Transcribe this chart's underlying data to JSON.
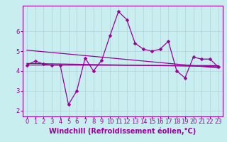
{
  "x": [
    0,
    1,
    2,
    3,
    4,
    5,
    6,
    7,
    8,
    9,
    10,
    11,
    12,
    13,
    14,
    15,
    16,
    17,
    18,
    19,
    20,
    21,
    22,
    23
  ],
  "line1": [
    4.3,
    4.5,
    4.35,
    4.3,
    4.3,
    2.3,
    3.0,
    4.65,
    4.0,
    4.55,
    5.8,
    7.0,
    6.6,
    5.4,
    5.1,
    5.0,
    5.1,
    5.5,
    4.0,
    3.65,
    4.7,
    4.6,
    4.6,
    4.2
  ],
  "line2_x": [
    0,
    23
  ],
  "line2_y": [
    5.05,
    4.15
  ],
  "line3_x": [
    0,
    23
  ],
  "line3_y": [
    4.38,
    4.22
  ],
  "line4_x": [
    0,
    23
  ],
  "line4_y": [
    4.3,
    4.27
  ],
  "color": "#990099",
  "bg_color": "#c8eef0",
  "grid_color": "#b0d0d8",
  "xlabel": "Windchill (Refroidissement éolien,°C)",
  "xlim": [
    -0.5,
    23.5
  ],
  "ylim": [
    1.7,
    7.3
  ],
  "yticks": [
    2,
    3,
    4,
    5,
    6
  ],
  "xticks": [
    0,
    1,
    2,
    3,
    4,
    5,
    6,
    7,
    8,
    9,
    10,
    11,
    12,
    13,
    14,
    15,
    16,
    17,
    18,
    19,
    20,
    21,
    22,
    23
  ],
  "marker": "D",
  "markersize": 2.5,
  "linewidth": 0.9,
  "xlabel_fontsize": 7,
  "tick_fontsize": 6
}
